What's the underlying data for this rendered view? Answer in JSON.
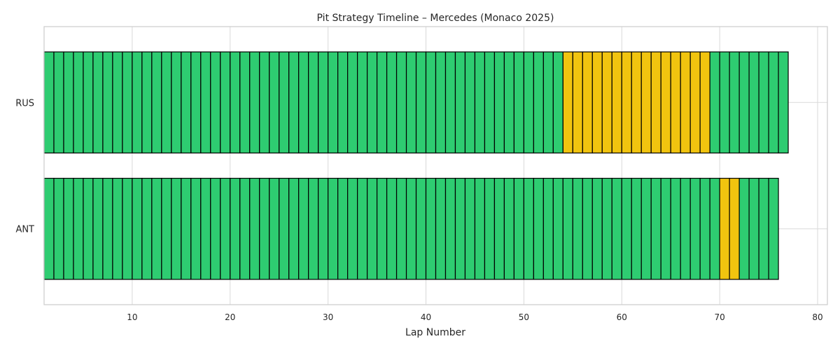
{
  "chart_data": {
    "type": "bar",
    "orientation": "horizontal",
    "title": "Pit Strategy Timeline – Mercedes (Monaco 2025)",
    "xlabel": "Lap Number",
    "ylabel": "",
    "xlim": [
      1,
      81
    ],
    "xticks": [
      "10",
      "20",
      "30",
      "40",
      "50",
      "60",
      "70",
      "80"
    ],
    "grid": true,
    "colors": {
      "green": "#2ecc71",
      "yellow": "#f1c40f",
      "edge": "#000000"
    },
    "drivers": [
      {
        "label": "RUS",
        "stints": [
          {
            "start_lap": 1,
            "end_lap": 54,
            "color": "green"
          },
          {
            "start_lap": 54,
            "end_lap": 69,
            "color": "yellow"
          },
          {
            "start_lap": 69,
            "end_lap": 77,
            "color": "green"
          }
        ]
      },
      {
        "label": "ANT",
        "stints": [
          {
            "start_lap": 1,
            "end_lap": 70,
            "color": "green"
          },
          {
            "start_lap": 70,
            "end_lap": 72,
            "color": "yellow"
          },
          {
            "start_lap": 72,
            "end_lap": 76,
            "color": "green"
          }
        ]
      }
    ]
  }
}
